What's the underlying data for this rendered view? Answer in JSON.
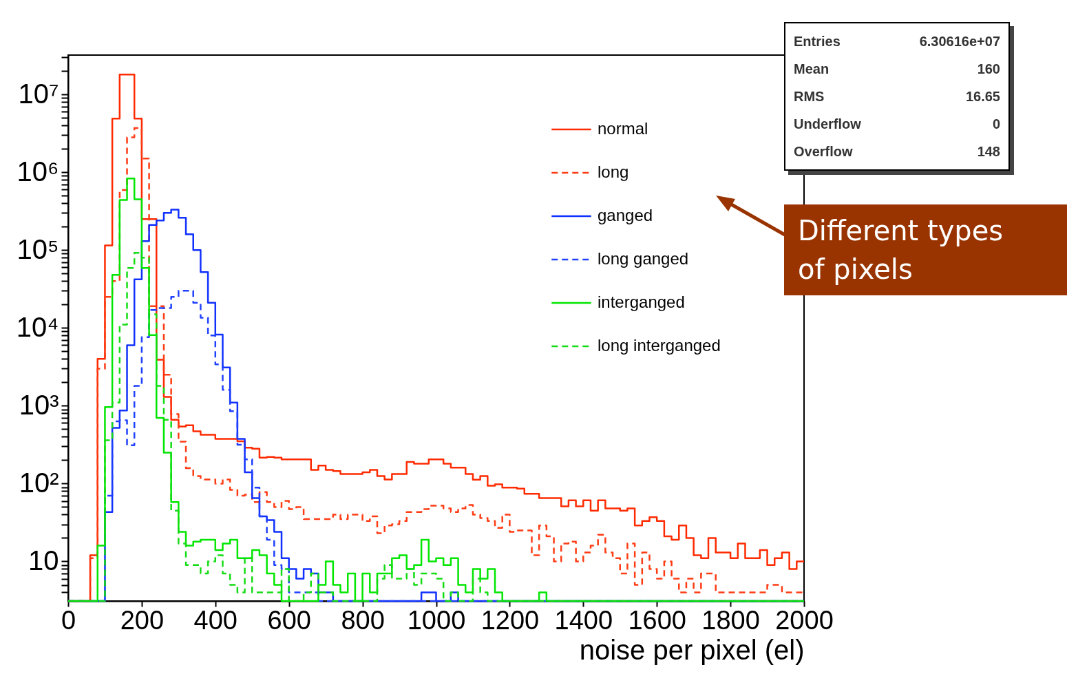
{
  "chart_data": {
    "type": "histogram",
    "xlabel": "noise per pixel (el)",
    "bins": [
      0,
      20,
      40,
      60,
      80,
      100,
      120,
      140,
      160,
      180,
      200,
      220,
      240,
      260,
      280,
      300,
      320,
      340,
      360,
      380,
      400,
      420,
      440,
      460,
      480,
      500,
      520,
      540,
      560,
      580,
      600,
      620,
      640,
      660,
      680,
      700,
      720,
      740,
      760,
      780,
      800,
      820,
      840,
      860,
      880,
      900,
      920,
      940,
      960,
      980,
      1000,
      1020,
      1040,
      1060,
      1080,
      1100,
      1120,
      1140,
      1160,
      1180,
      1200,
      1220,
      1240,
      1260,
      1280,
      1300,
      1320,
      1340,
      1360,
      1380,
      1400,
      1420,
      1440,
      1460,
      1480,
      1500,
      1520,
      1540,
      1560,
      1580,
      1600,
      1620,
      1640,
      1660,
      1680,
      1700,
      1720,
      1740,
      1760,
      1780,
      1800,
      1820,
      1840,
      1860,
      1880,
      1900,
      1920,
      1940,
      1960,
      1980,
      2000
    ],
    "series": [
      {
        "name": "normal",
        "color": "#ff2a00",
        "line_style": "solid",
        "values": [
          null,
          null,
          null,
          12,
          4000,
          115000,
          4900000,
          18000000,
          18000000,
          4900000,
          250000,
          250000,
          3900,
          1300,
          660,
          540,
          560,
          470,
          425,
          425,
          375,
          375,
          375,
          350,
          290,
          280,
          215,
          220,
          215,
          205,
          205,
          205,
          205,
          150,
          170,
          150,
          145,
          133,
          133,
          133,
          140,
          150,
          125,
          113,
          133,
          133,
          190,
          180,
          180,
          205,
          205,
          180,
          160,
          160,
          133,
          112,
          125,
          94,
          98,
          89,
          89,
          86,
          74,
          74,
          65,
          65,
          65,
          51,
          61,
          51,
          61,
          45,
          61,
          48,
          48,
          45,
          48,
          29,
          33,
          37,
          33,
          21,
          19,
          29,
          20,
          12,
          11,
          20,
          13,
          13,
          11,
          17,
          11,
          11,
          14,
          9,
          11,
          13,
          8,
          10
        ]
      },
      {
        "name": "long",
        "color": "#ff3c14",
        "line_style": "dashed",
        "values": [
          null,
          null,
          null,
          11,
          3000,
          25000,
          40000,
          590000,
          2800000,
          3700000,
          1500000,
          19000,
          19000,
          2500,
          780,
          345,
          158,
          125,
          113,
          113,
          100,
          113,
          83,
          70,
          72,
          58,
          78,
          58,
          50,
          60,
          47,
          50,
          35,
          35,
          35,
          35,
          40,
          35,
          40,
          40,
          33,
          38,
          23,
          29,
          30,
          33,
          43,
          43,
          47,
          52,
          52,
          48,
          43,
          48,
          53,
          40,
          36,
          33,
          27,
          40,
          24,
          25,
          25,
          12,
          29,
          21,
          10,
          17,
          18,
          10,
          13,
          16,
          22,
          13,
          11,
          7,
          17,
          5,
          13,
          8,
          6,
          10,
          6,
          4,
          6,
          4,
          7,
          7,
          4,
          4,
          4,
          4,
          4,
          4,
          4,
          5,
          5,
          4,
          4,
          4
        ]
      },
      {
        "name": "ganged",
        "color": "#1030ff",
        "line_style": "solid",
        "values": [
          null,
          null,
          null,
          null,
          null,
          43,
          520,
          870,
          6000,
          42000,
          130000,
          210000,
          240000,
          300000,
          330000,
          260000,
          160000,
          100000,
          52000,
          21000,
          8200,
          3100,
          1100,
          375,
          140,
          65,
          38,
          34,
          24,
          11,
          8,
          6,
          8,
          7,
          4,
          4,
          null,
          null,
          null,
          null,
          null,
          null,
          null,
          null,
          null,
          null,
          null,
          null,
          4,
          4,
          null,
          null,
          4,
          null,
          null,
          null,
          null,
          null,
          null,
          null,
          null,
          null,
          null,
          null,
          null,
          null,
          null,
          null,
          null,
          null,
          null,
          null,
          null,
          null,
          null,
          null,
          null,
          null,
          null,
          null,
          null,
          null,
          null,
          null,
          null,
          null,
          null,
          null,
          null,
          null,
          null,
          null,
          null,
          null,
          null,
          null,
          null,
          null,
          null,
          null
        ]
      },
      {
        "name": "long ganged",
        "color": "#2040ff",
        "line_style": "dashed",
        "values": [
          null,
          null,
          null,
          null,
          null,
          70,
          630,
          650,
          310,
          1800,
          7600,
          17000,
          18000,
          18000,
          25000,
          30000,
          30000,
          21000,
          13500,
          8000,
          3400,
          1600,
          850,
          315,
          205,
          89,
          38,
          19,
          9,
          8,
          4,
          4,
          4,
          4,
          null,
          null,
          null,
          null,
          null,
          null,
          null,
          null,
          null,
          null,
          null,
          null,
          null,
          null,
          null,
          null,
          null,
          null,
          null,
          null,
          null,
          null,
          null,
          null,
          null,
          null,
          null,
          null,
          null,
          null,
          null,
          null,
          null,
          null,
          null,
          null,
          null,
          null,
          null,
          null,
          null,
          null,
          null,
          null,
          null,
          null,
          null,
          null,
          null,
          null,
          null,
          null,
          null,
          null,
          null,
          null,
          null,
          null,
          null,
          null,
          null,
          null,
          null,
          null,
          null,
          null
        ]
      },
      {
        "name": "interganged",
        "color": "#00e600",
        "line_style": "solid",
        "values": [
          null,
          null,
          null,
          null,
          16,
          960,
          48000,
          440000,
          830000,
          450000,
          59000,
          8100,
          700,
          250,
          58,
          24,
          16,
          18,
          19,
          19,
          14,
          17,
          19,
          11,
          11,
          14,
          12,
          7,
          5,
          null,
          null,
          null,
          null,
          null,
          5,
          10,
          5,
          4,
          7,
          null,
          7,
          4,
          7,
          7,
          11,
          12,
          8,
          9,
          19,
          10,
          11,
          9,
          11,
          5,
          4,
          8,
          6,
          8,
          4,
          null,
          null,
          null,
          null,
          null,
          4,
          null,
          null,
          null,
          null,
          null,
          null,
          null,
          null,
          null,
          null,
          null,
          null,
          null,
          null,
          null,
          null,
          null,
          null,
          null,
          null,
          null,
          null,
          null,
          null,
          null,
          null,
          null,
          null,
          null,
          null,
          null,
          null,
          null,
          null,
          null
        ]
      },
      {
        "name": "long interganged",
        "color": "#14dc14",
        "line_style": "dashed",
        "values": [
          null,
          null,
          null,
          null,
          null,
          360,
          1100,
          11000,
          59000,
          92000,
          80000,
          15000,
          1800,
          660,
          45,
          17,
          9,
          9,
          7,
          10,
          12,
          7,
          5,
          4,
          11,
          4,
          4,
          4,
          4,
          8,
          null,
          null,
          4,
          7,
          4,
          4,
          null,
          null,
          null,
          null,
          null,
          null,
          6,
          9,
          6,
          6,
          8,
          5,
          7,
          7,
          6,
          null,
          4,
          null,
          null,
          6,
          4,
          null,
          null,
          null,
          null,
          null,
          null,
          null,
          null,
          null,
          null,
          null,
          null,
          null,
          null,
          null,
          null,
          null,
          null,
          null,
          null,
          null,
          null,
          null,
          null,
          null,
          null,
          null,
          null,
          null,
          null,
          null,
          null,
          null,
          null,
          null,
          null,
          null,
          null,
          null,
          null,
          null,
          null,
          null
        ]
      }
    ],
    "xlim": [
      0,
      2000
    ],
    "xticks": [
      0,
      200,
      400,
      600,
      800,
      1000,
      1200,
      1400,
      1600,
      1800,
      2000
    ],
    "ylim": [
      3.1,
      32000000
    ],
    "log": true,
    "yticks": [
      {
        "value": 4,
        "label": null
      },
      {
        "value": 5,
        "label": null
      },
      {
        "value": 6,
        "label": null
      },
      {
        "value": 7,
        "label": null
      },
      {
        "value": 8,
        "label": null
      },
      {
        "value": 9,
        "label": null
      },
      10,
      {
        "value": 20,
        "label": null
      },
      {
        "value": 30,
        "label": null
      },
      {
        "value": 40,
        "label": null
      },
      {
        "value": 50,
        "label": null
      },
      {
        "value": 60,
        "label": null
      },
      {
        "value": 70,
        "label": null
      },
      {
        "value": 80,
        "label": null
      },
      {
        "value": 90,
        "label": null
      },
      {
        "value": 100,
        "label": "10²"
      },
      {
        "value": 200,
        "label": null
      },
      {
        "value": 300,
        "label": null
      },
      {
        "value": 400,
        "label": null
      },
      {
        "value": 500,
        "label": null
      },
      {
        "value": 600,
        "label": null
      },
      {
        "value": 700,
        "label": null
      },
      {
        "value": 800,
        "label": null
      },
      {
        "value": 900,
        "label": null
      },
      {
        "value": 1000,
        "label": "10³"
      },
      {
        "value": 2000,
        "label": null
      },
      {
        "value": 3000,
        "label": null
      },
      {
        "value": 4000,
        "label": null
      },
      {
        "value": 5000,
        "label": null
      },
      {
        "value": 6000,
        "label": null
      },
      {
        "value": 7000,
        "label": null
      },
      {
        "value": 8000,
        "label": null
      },
      {
        "value": 9000,
        "label": null
      },
      {
        "value": 10000,
        "label": "10⁴"
      },
      {
        "value": 20000,
        "label": null
      },
      {
        "value": 30000,
        "label": null
      },
      {
        "value": 40000,
        "label": null
      },
      {
        "value": 50000,
        "label": null
      },
      {
        "value": 60000,
        "label": null
      },
      {
        "value": 70000,
        "label": null
      },
      {
        "value": 80000,
        "label": null
      },
      {
        "value": 90000,
        "label": null
      },
      {
        "value": 100000,
        "label": "10⁵"
      },
      {
        "value": 200000,
        "label": null
      },
      {
        "value": 300000,
        "label": null
      },
      {
        "value": 400000,
        "label": null
      },
      {
        "value": 500000,
        "label": null
      },
      {
        "value": 600000,
        "label": null
      },
      {
        "value": 700000,
        "label": null
      },
      {
        "value": 800000,
        "label": null
      },
      {
        "value": 900000,
        "label": null
      },
      {
        "value": 1000000,
        "label": "10⁶"
      },
      {
        "value": 2000000,
        "label": null
      },
      {
        "value": 3000000,
        "label": null
      },
      {
        "value": 4000000,
        "label": null
      },
      {
        "value": 5000000,
        "label": null
      },
      {
        "value": 6000000,
        "label": null
      },
      {
        "value": 7000000,
        "label": null
      },
      {
        "value": 8000000,
        "label": null
      },
      {
        "value": 9000000,
        "label": null
      },
      {
        "value": 10000000,
        "label": "10⁷"
      },
      {
        "value": 20000000,
        "label": null
      },
      {
        "value": 30000000,
        "label": null
      }
    ],
    "legend": "top right",
    "annotations": [
      "Entries 6.30616e+07",
      "Mean 160",
      "RMS 16.65",
      "Underflow 0",
      "Overflow 148",
      "Different types of pixels"
    ]
  }
}
